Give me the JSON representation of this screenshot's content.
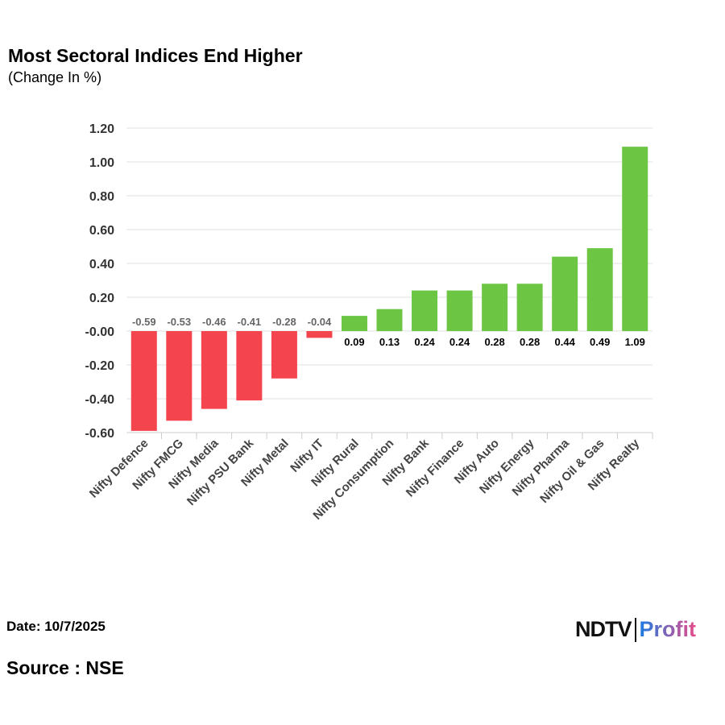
{
  "title": "Most Sectoral Indices End Higher",
  "subtitle": "(Change In %)",
  "footer": {
    "date": "Date: 10/7/2025",
    "source": "Source : NSE",
    "logo_left": "NDTV",
    "logo_right": "Profit"
  },
  "colors": {
    "negative": "#f4444e",
    "positive": "#6cc644",
    "grid": "#e0e0e0"
  },
  "chart_data": {
    "type": "bar",
    "title": "Most Sectoral Indices End Higher",
    "ylabel": "(Change In %)",
    "categories": [
      "Nifty Defence",
      "Nifty FMCG",
      "Nifty Media",
      "Nifty PSU Bank",
      "Nifty Metal",
      "Nifty IT",
      "Nifty Rural",
      "Nifty Consumption",
      "Nifty Bank",
      "Nifty Finance",
      "Nifty Auto",
      "Nifty Energy",
      "Nifty Pharma",
      "Nifty Oil & Gas",
      "Nifty Realty"
    ],
    "values": [
      -0.59,
      -0.53,
      -0.46,
      -0.41,
      -0.28,
      -0.04,
      0.09,
      0.13,
      0.24,
      0.24,
      0.28,
      0.28,
      0.44,
      0.49,
      1.09
    ],
    "ylim": [
      -0.6,
      1.2
    ],
    "yticks": [
      "1.20",
      "1.00",
      "0.80",
      "0.60",
      "0.40",
      "0.20",
      "-0.00",
      "-0.20",
      "-0.40",
      "-0.60"
    ],
    "grid": true
  }
}
